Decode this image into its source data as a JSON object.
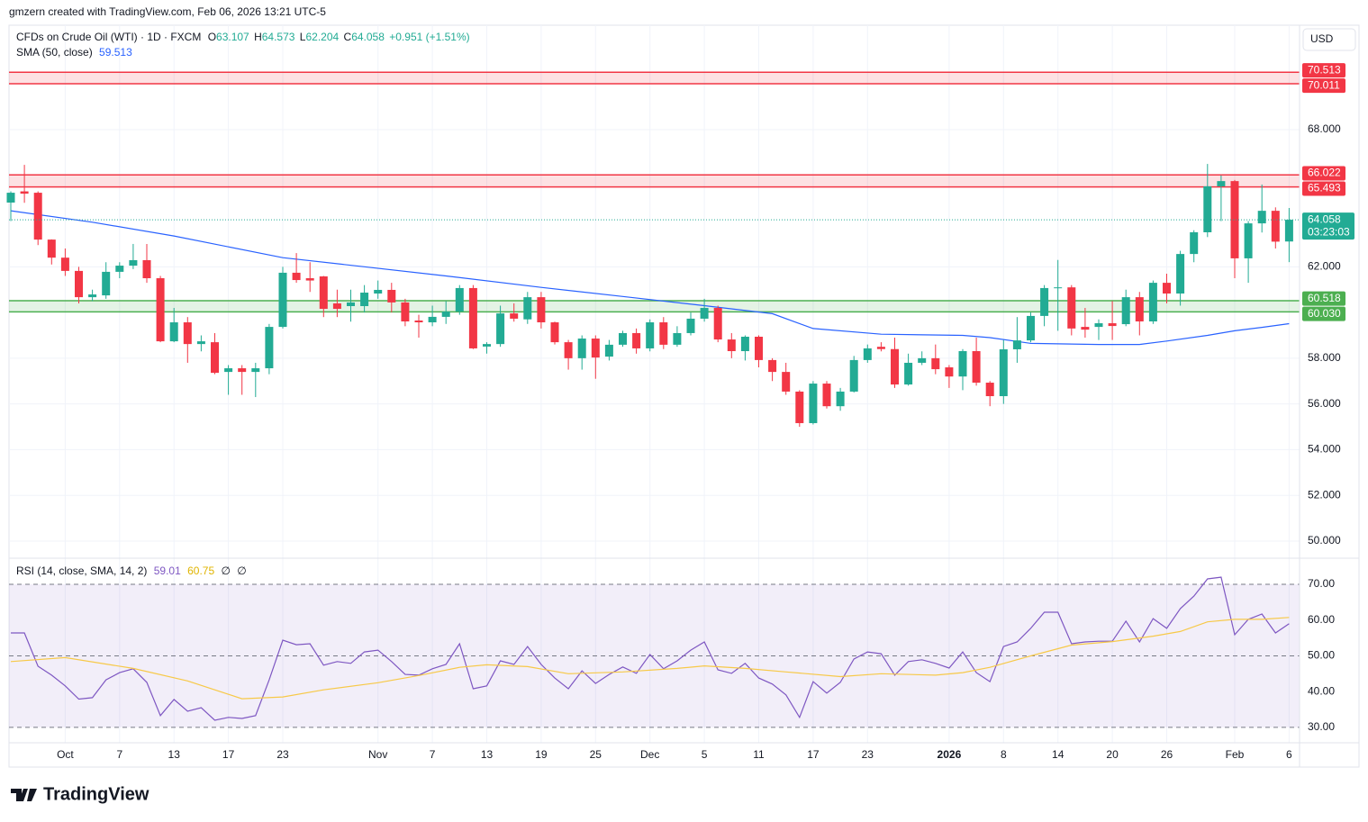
{
  "header": {
    "credit": "gmzern created with TradingView.com, Feb 06, 2026 13:21 UTC-5",
    "brand": "TradingView"
  },
  "chart_data": [
    {
      "type": "candlestick",
      "title": "CFDs on Crude Oil (WTI) · 1D · FXCM",
      "ohlc_letters": [
        "O",
        "H",
        "L",
        "C"
      ],
      "change_label": "+0.951 (+1.51%)",
      "currency": "USD",
      "countdown": "03:23:03",
      "up_color": "#22ab94",
      "down_color": "#f23645",
      "categories": [
        null,
        null,
        null,
        null,
        "Oct",
        null,
        null,
        null,
        "7",
        null,
        null,
        null,
        "13",
        null,
        null,
        null,
        "17",
        null,
        null,
        null,
        "23",
        null,
        null,
        null,
        null,
        null,
        null,
        "Nov",
        null,
        null,
        null,
        "7",
        null,
        null,
        null,
        "13",
        null,
        null,
        null,
        "19",
        null,
        null,
        null,
        "25",
        null,
        null,
        null,
        "Dec",
        null,
        null,
        null,
        "5",
        null,
        null,
        null,
        "11",
        null,
        null,
        null,
        "17",
        null,
        null,
        null,
        "23",
        null,
        null,
        null,
        null,
        null,
        "2026",
        null,
        null,
        null,
        "8",
        null,
        null,
        null,
        "14",
        null,
        null,
        null,
        "20",
        null,
        null,
        null,
        "26",
        null,
        null,
        null,
        null,
        "Feb",
        null,
        null,
        null,
        "6"
      ],
      "open": [
        64.81,
        65.3,
        65.24,
        63.19,
        62.4,
        61.82,
        60.67,
        60.75,
        61.78,
        62.05,
        62.29,
        61.5,
        58.74,
        59.57,
        58.62,
        58.7,
        57.4,
        57.56,
        57.4,
        57.56,
        59.37,
        61.74,
        61.5,
        61.58,
        60.4,
        60.28,
        60.28,
        60.83,
        60.99,
        60.44,
        59.65,
        59.57,
        59.81,
        60.04,
        61.07,
        58.51,
        58.62,
        59.96,
        59.7,
        60.67,
        59.57,
        58.7,
        58.0,
        58.86,
        58.07,
        58.59,
        59.1,
        58.43,
        59.57,
        58.59,
        59.1,
        59.73,
        60.2,
        58.82,
        58.31,
        58.94,
        57.92,
        57.4,
        56.54,
        55.16,
        56.89,
        55.9,
        56.54,
        57.92,
        58.5,
        58.4,
        56.85,
        57.8,
        58.0,
        57.6,
        57.2,
        58.31,
        56.93,
        56.34,
        58.39,
        58.78,
        59.85,
        61.07,
        61.1,
        59.37,
        59.37,
        59.53,
        59.49,
        60.67,
        59.61,
        61.3,
        60.83,
        62.56,
        63.51,
        65.52,
        65.75,
        62.37,
        63.9,
        64.45,
        63.107
      ],
      "high": [
        65.3,
        66.46,
        65.3,
        63.2,
        62.8,
        62.0,
        61.0,
        62.2,
        62.2,
        63.0,
        63.0,
        61.6,
        60.2,
        59.8,
        59.0,
        59.1,
        57.7,
        57.7,
        57.8,
        59.5,
        62.0,
        62.6,
        62.2,
        61.6,
        61.0,
        61.0,
        61.2,
        61.4,
        61.3,
        60.6,
        59.9,
        60.3,
        60.5,
        61.2,
        61.2,
        58.7,
        60.3,
        60.4,
        60.9,
        60.9,
        59.6,
        58.8,
        59.0,
        59.0,
        58.8,
        59.2,
        59.3,
        59.7,
        59.8,
        59.4,
        60.0,
        60.6,
        60.3,
        59.1,
        59.0,
        59.0,
        58.0,
        57.8,
        56.6,
        57.0,
        57.0,
        56.7,
        58.1,
        58.6,
        58.7,
        58.9,
        58.2,
        58.3,
        58.6,
        57.7,
        58.4,
        58.9,
        57.0,
        58.8,
        59.8,
        60.0,
        61.2,
        62.3,
        61.2,
        60.2,
        59.7,
        60.5,
        61.0,
        60.9,
        61.4,
        61.7,
        62.7,
        63.6,
        66.5,
        66.0,
        65.8,
        64.0,
        65.6,
        64.6,
        64.573
      ],
      "low": [
        64.0,
        64.8,
        62.95,
        62.1,
        61.6,
        60.4,
        60.5,
        60.6,
        61.5,
        61.9,
        61.3,
        58.7,
        58.7,
        57.8,
        58.3,
        57.3,
        56.4,
        56.4,
        56.3,
        57.3,
        59.3,
        61.3,
        60.9,
        59.8,
        59.8,
        59.6,
        60.0,
        60.6,
        60.0,
        59.4,
        58.9,
        59.4,
        59.5,
        59.9,
        58.4,
        58.2,
        58.5,
        59.6,
        59.5,
        59.3,
        58.6,
        57.5,
        57.5,
        57.1,
        57.9,
        58.5,
        58.2,
        58.3,
        58.4,
        58.5,
        59.0,
        59.6,
        58.7,
        58.0,
        57.9,
        57.6,
        57.0,
        56.4,
        55.0,
        55.1,
        55.8,
        55.7,
        56.5,
        57.8,
        58.3,
        56.7,
        56.8,
        57.7,
        57.3,
        56.7,
        56.6,
        56.8,
        55.9,
        56.0,
        57.8,
        58.7,
        59.4,
        59.2,
        59.0,
        58.9,
        58.8,
        58.8,
        59.4,
        59.0,
        59.5,
        60.4,
        60.3,
        62.2,
        63.3,
        64.0,
        61.5,
        61.3,
        63.5,
        62.8,
        62.204
      ],
      "close": [
        65.24,
        65.2,
        63.19,
        62.4,
        61.82,
        60.67,
        60.79,
        61.78,
        62.05,
        62.29,
        61.5,
        58.74,
        59.57,
        58.62,
        58.74,
        57.36,
        57.56,
        57.4,
        57.56,
        59.37,
        61.74,
        61.42,
        61.4,
        60.16,
        60.16,
        60.44,
        60.87,
        60.99,
        60.44,
        59.61,
        59.57,
        59.81,
        60.04,
        61.07,
        58.43,
        58.62,
        59.96,
        59.73,
        60.67,
        59.57,
        58.7,
        58.0,
        58.86,
        58.03,
        58.59,
        59.1,
        58.43,
        59.57,
        58.59,
        59.1,
        59.73,
        60.2,
        58.82,
        58.31,
        58.94,
        57.92,
        57.4,
        56.54,
        55.16,
        56.89,
        55.9,
        56.54,
        57.92,
        58.43,
        58.4,
        56.85,
        57.8,
        58.0,
        57.52,
        57.2,
        58.31,
        56.93,
        56.34,
        58.39,
        58.78,
        59.85,
        61.07,
        61.1,
        59.3,
        59.25,
        59.53,
        59.41,
        60.67,
        59.61,
        61.3,
        60.83,
        62.56,
        63.51,
        65.52,
        65.75,
        62.37,
        63.9,
        64.45,
        63.1,
        64.058
      ],
      "series": [
        {
          "name": "SMA (50, close)",
          "color": "#2962ff",
          "x": [
            0,
            6,
            12,
            20,
            26,
            32,
            39,
            45,
            51,
            56,
            59,
            64,
            70,
            72,
            75,
            80,
            83,
            85,
            88,
            90,
            92,
            94
          ],
          "values": [
            64.45,
            63.95,
            63.35,
            62.4,
            62.0,
            61.6,
            61.1,
            60.7,
            60.3,
            59.95,
            59.3,
            59.05,
            59.0,
            58.9,
            58.65,
            58.6,
            58.6,
            58.75,
            59.0,
            59.2,
            59.35,
            59.513
          ]
        }
      ],
      "zones": [
        {
          "values": [
            70.011,
            70.513
          ],
          "value_labels": [
            "70.011",
            "70.513"
          ],
          "color": "#f23645"
        },
        {
          "values": [
            65.493,
            66.022
          ],
          "value_labels": [
            "65.493",
            "66.022"
          ],
          "color": "#f23645"
        },
        {
          "values": [
            60.03,
            60.518
          ],
          "value_labels": [
            "60.030",
            "60.518"
          ],
          "color": "#4caf50"
        }
      ],
      "ylim": [
        49.25,
        72.57
      ],
      "yticks": [
        {
          "value": 50,
          "label": "50.000"
        },
        {
          "value": 52,
          "label": "52.000"
        },
        {
          "value": 54,
          "label": "54.000"
        },
        {
          "value": 56,
          "label": "56.000"
        },
        {
          "value": 58,
          "label": "58.000"
        },
        {
          "value": 62,
          "label": "62.000"
        },
        {
          "value": 68,
          "label": "68.000"
        }
      ],
      "grid": true
    },
    {
      "type": "line",
      "title": "RSI (14, close, SMA, 14, 2)",
      "extras": [
        "∅",
        "∅"
      ],
      "series": [
        {
          "color": "#7e57c2",
          "values": [
            56.4,
            56.4,
            47.1,
            44.6,
            41.6,
            37.9,
            38.3,
            43.3,
            45.3,
            46.4,
            42.6,
            33.3,
            37.8,
            34.5,
            35.5,
            32.0,
            32.8,
            32.5,
            33.3,
            43.3,
            54.4,
            53.1,
            53.4,
            47.4,
            48.4,
            47.9,
            51.1,
            51.6,
            48.4,
            44.8,
            44.6,
            46.4,
            47.6,
            53.4,
            40.8,
            41.6,
            48.6,
            47.6,
            52.6,
            47.6,
            43.8,
            40.8,
            45.8,
            42.3,
            44.8,
            46.9,
            45.1,
            50.4,
            46.4,
            48.6,
            51.6,
            53.9,
            46.1,
            45.1,
            47.9,
            43.8,
            42.1,
            39.1,
            32.8,
            42.8,
            39.6,
            42.6,
            49.1,
            51.1,
            50.6,
            44.6,
            48.4,
            48.9,
            47.9,
            46.6,
            51.1,
            45.3,
            42.8,
            52.6,
            53.9,
            57.7,
            62.2,
            62.2,
            53.4,
            53.9,
            54.1,
            54.1,
            59.7,
            53.9,
            60.4,
            57.7,
            63.2,
            66.7,
            71.5,
            72.0,
            55.9,
            60.2,
            61.7,
            56.4,
            59.01
          ]
        },
        {
          "color": "#f7c948",
          "x": [
            0,
            4,
            9,
            13,
            17,
            20,
            23,
            27,
            30,
            33,
            35,
            38,
            41,
            45,
            49,
            51,
            54,
            57,
            61,
            64,
            68,
            70,
            72,
            75,
            78,
            81,
            84,
            86,
            88,
            90,
            92,
            94
          ],
          "values": [
            48.4,
            49.5,
            46.5,
            43,
            38,
            38.5,
            40.5,
            42.5,
            44.5,
            46.8,
            47.5,
            47,
            45,
            45.5,
            46.5,
            47.2,
            46.5,
            45.5,
            44.2,
            45,
            44.6,
            45.3,
            46.8,
            50,
            53,
            54,
            55.5,
            56.8,
            59.5,
            60.2,
            60.2,
            60.75
          ]
        }
      ],
      "band": [
        30,
        70
      ],
      "band_color": "#7e57c2",
      "levels": [
        70,
        50,
        30
      ],
      "ylim": [
        25.7,
        77.3
      ],
      "yticks": [
        {
          "value": 30,
          "label": "30.00"
        },
        {
          "value": 40,
          "label": "40.00"
        },
        {
          "value": 50,
          "label": "50.00"
        },
        {
          "value": 60,
          "label": "60.00"
        },
        {
          "value": 70,
          "label": "70.00"
        }
      ]
    }
  ]
}
